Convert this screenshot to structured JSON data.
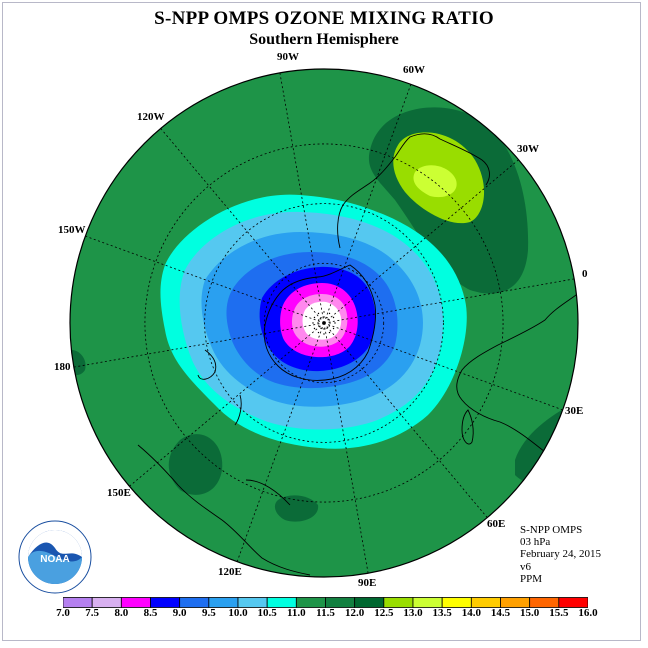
{
  "title": "S-NPP OMPS OZONE MIXING RATIO",
  "subtitle": "Southern Hemisphere",
  "info": {
    "instrument": "S-NPP OMPS",
    "level": "03 hPa",
    "date": "February 24, 2015",
    "version": "v6",
    "units": "PPM"
  },
  "longitude_labels": [
    "90W",
    "60W",
    "30W",
    "0",
    "30E",
    "60E",
    "90E",
    "120E",
    "150E",
    "180",
    "150W",
    "120W"
  ],
  "logo": {
    "text": "NOAA",
    "icon": "noaa-logo"
  },
  "colorbar": {
    "labels": [
      "7.0",
      "7.5",
      "8.0",
      "8.5",
      "9.0",
      "9.5",
      "10.0",
      "10.5",
      "11.0",
      "11.5",
      "12.0",
      "12.5",
      "13.0",
      "13.5",
      "14.0",
      "14.5",
      "15.0",
      "15.5",
      "16.0"
    ],
    "colors": [
      "#b580f0",
      "#d8b0f0",
      "#ff00ff",
      "#0000ff",
      "#1e6ef0",
      "#2aa0f0",
      "#55c8f0",
      "#00ffe0",
      "#1e9448",
      "#128040",
      "#006830",
      "#99dd00",
      "#ccff33",
      "#ffff00",
      "#ffcc00",
      "#ffa000",
      "#ff6600",
      "#ff0000",
      "#8b5a3c"
    ]
  },
  "map_colors": {
    "outer": "#1e9448",
    "dark": "#0b6b38",
    "ring_cyan": "#00ffe0",
    "ring_lightblue": "#55c8f0",
    "ring_midblue": "#2aa0f0",
    "ring_blue": "#1e6ef0",
    "ring_deepblue": "#0000ff",
    "ring_magenta": "#ff00ff",
    "ring_pink": "#ff88ee",
    "center": "#ffffff",
    "lime": "#99dd00",
    "yellowgreen": "#ccff33"
  }
}
